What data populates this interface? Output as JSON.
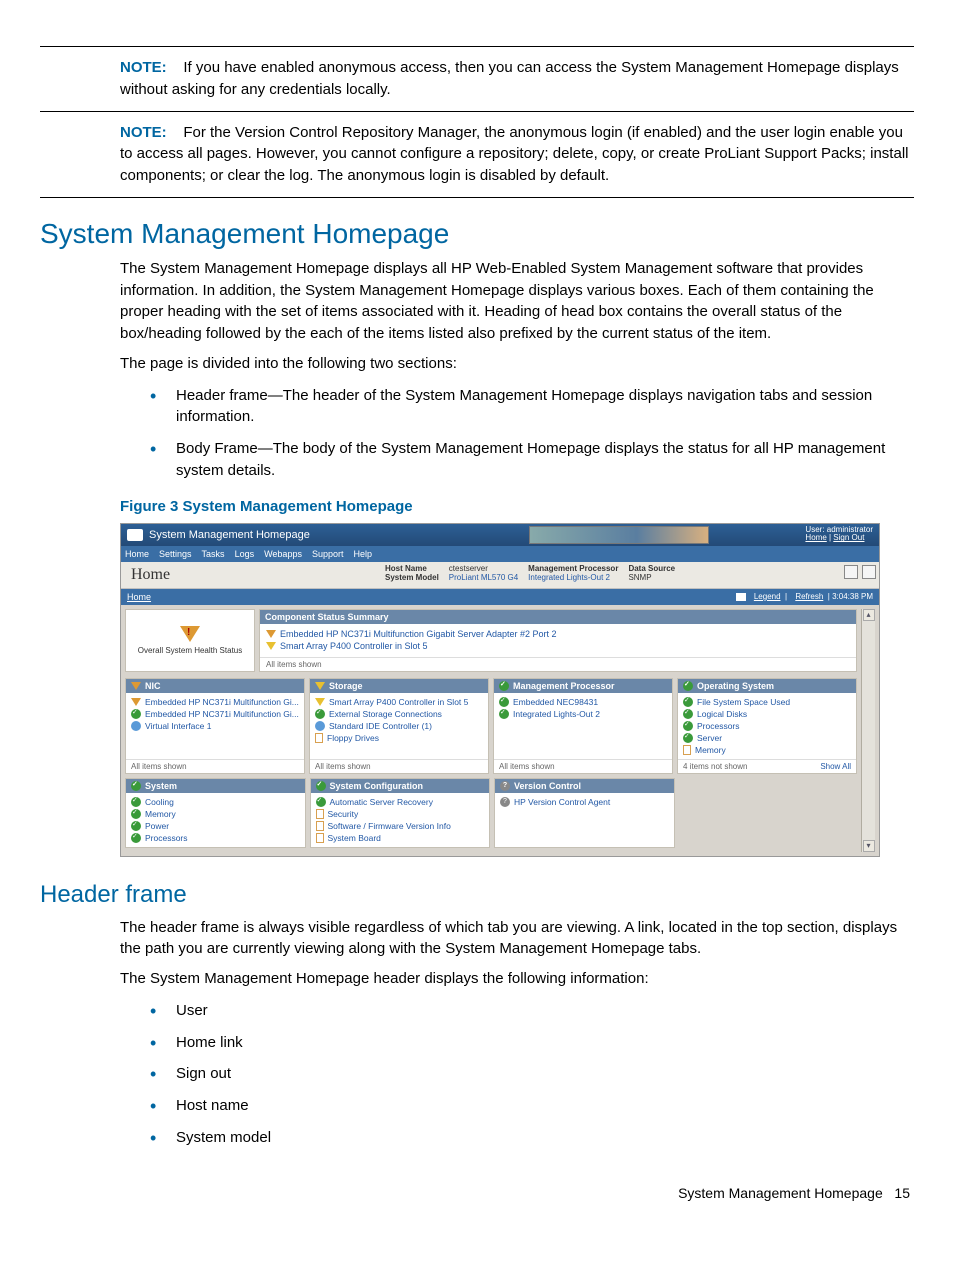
{
  "notes": {
    "label": "NOTE:",
    "n1": "If you have enabled anonymous access, then you can access the System Management Homepage displays without asking for any credentials locally.",
    "n2": "For the Version Control Repository Manager, the anonymous login (if enabled) and the user login enable you to access all pages. However, you cannot configure a repository; delete, copy, or create ProLiant Support Packs; install components; or clear the log. The anonymous login is disabled by default."
  },
  "section": {
    "title": "System Management Homepage",
    "p1": "The System Management Homepage displays all HP Web-Enabled System Management software that provides information. In addition, the System Management Homepage displays various boxes. Each of them containing the proper heading with the set of items associated with it. Heading of head box contains the overall status of the box/heading followed by the each of the items listed also prefixed by the current status of the item.",
    "p2": "The page is divided into the following two sections:",
    "bullets": {
      "b1": "Header frame—The header of the System Management Homepage displays navigation tabs and session information.",
      "b2": "Body Frame—The body of the System Management Homepage displays the status for all HP management system details."
    },
    "fig_caption": "Figure 3 System Management Homepage"
  },
  "subsection": {
    "title": "Header frame",
    "p1": "The header frame is always visible regardless of which tab you are viewing. A link, located in the top section, displays the path you are currently viewing along with the System Management Homepage tabs.",
    "p2": "The System Management Homepage header displays the following information:",
    "bullets": {
      "b1": "User",
      "b2": "Home link",
      "b3": "Sign out",
      "b4": "Host name",
      "b5": "System model"
    }
  },
  "footer": {
    "label": "System Management Homepage",
    "page": "15"
  },
  "ss": {
    "title": "System Management Homepage",
    "user_lbl": "User: administrator",
    "home_link": "Home",
    "signout_link": "Sign Out",
    "menu": {
      "m1": "Home",
      "m2": "Settings",
      "m3": "Tasks",
      "m4": "Logs",
      "m5": "Webapps",
      "m6": "Support",
      "m7": "Help"
    },
    "home_label": "Home",
    "meta": {
      "hostname_lbl": "Host Name",
      "hostname_val": "ctestserver",
      "model_lbl": "System Model",
      "model_val": "ProLiant ML570 G4",
      "mproc_lbl": "Management Processor",
      "mproc_val": "Integrated Lights-Out 2",
      "ds_lbl": "Data Source",
      "ds_val": "SNMP"
    },
    "bc": {
      "home": "Home",
      "legend": "Legend",
      "refresh": "Refresh",
      "time": "3:04:38 PM"
    },
    "health_label": "Overall System Health Status",
    "css": {
      "head": "Component Status Summary",
      "i1": "Embedded HP NC371i Multifunction Gigabit Server Adapter #2 Port 2",
      "i2": "Smart Array P400 Controller in Slot 5",
      "foot": "All items shown"
    },
    "panels": {
      "nic": {
        "head": "NIC",
        "i1": "Embedded HP NC371i Multifunction Gi...",
        "i2": "Embedded HP NC371i Multifunction Gi...",
        "i3": "Virtual Interface 1",
        "foot": "All items shown"
      },
      "storage": {
        "head": "Storage",
        "i1": "Smart Array P400 Controller in Slot 5",
        "i2": "External Storage Connections",
        "i3": "Standard IDE Controller (1)",
        "i4": "Floppy Drives",
        "foot": "All items shown"
      },
      "mproc": {
        "head": "Management Processor",
        "i1": "Embedded NEC98431",
        "i2": "Integrated Lights-Out 2",
        "foot": "All items shown"
      },
      "os": {
        "head": "Operating System",
        "i1": "File System Space Used",
        "i2": "Logical Disks",
        "i3": "Processors",
        "i4": "Server",
        "i5": "Memory",
        "foot": "4 items not shown",
        "showall": "Show All"
      },
      "system": {
        "head": "System",
        "i1": "Cooling",
        "i2": "Memory",
        "i3": "Power",
        "i4": "Processors"
      },
      "sysconf": {
        "head": "System Configuration",
        "i1": "Automatic Server Recovery",
        "i2": "Security",
        "i3": "Software / Firmware Version Info",
        "i4": "System Board"
      },
      "version": {
        "head": "Version Control",
        "i1": "HP Version Control Agent"
      }
    }
  }
}
